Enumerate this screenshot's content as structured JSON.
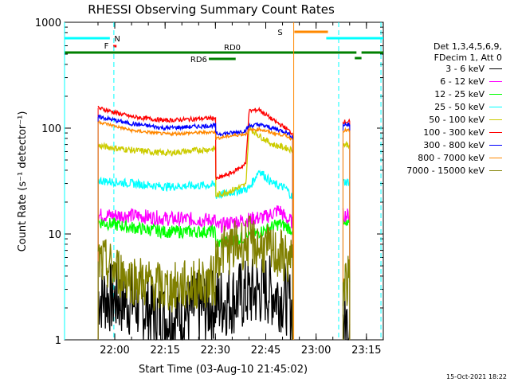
{
  "chart_data": {
    "type": "line",
    "title": "RHESSI Observing Summary Count Rates",
    "xlabel": "Start Time (03-Aug-10 21:45:02)",
    "ylabel": "Count Rate (s⁻¹ detector⁻¹)",
    "yscale": "log",
    "ylim": [
      1,
      1000
    ],
    "xlim_minutes": [
      0,
      95
    ],
    "x_ticks": [
      "22:00",
      "22:15",
      "22:30",
      "22:45",
      "23:00",
      "23:15"
    ],
    "y_ticks": [
      "1",
      "10",
      "100",
      "1000"
    ],
    "detector_info": [
      "Det 1,3,4,5,6,9,",
      "FDecim 1, Att 0"
    ],
    "series": [
      {
        "name": "3 - 6 keV",
        "color": "#000000",
        "segments": [
          [
            [
              10,
              2.6
            ],
            [
              20,
              2.3
            ],
            [
              30,
              1.6
            ],
            [
              45,
              2.2
            ],
            [
              60,
              3.0
            ],
            [
              66,
              2.5
            ],
            [
              68,
              1.9
            ]
          ],
          [
            [
              83,
              1.4
            ],
            [
              85,
              1.4
            ]
          ]
        ]
      },
      {
        "name": "6 - 12 keV",
        "color": "#ff00ff",
        "segments": [
          [
            [
              10,
              15
            ],
            [
              20,
              15
            ],
            [
              30,
              14
            ],
            [
              45,
              13.5
            ],
            [
              45.1,
              11.5
            ],
            [
              50,
              13
            ],
            [
              60,
              14.5
            ],
            [
              64,
              17
            ],
            [
              66,
              14
            ],
            [
              68,
              13
            ]
          ],
          [
            [
              83,
              15
            ],
            [
              85,
              15
            ]
          ]
        ]
      },
      {
        "name": "12 - 25 keV",
        "color": "#00ff00",
        "segments": [
          [
            [
              10,
              13
            ],
            [
              20,
              11.5
            ],
            [
              30,
              10.5
            ],
            [
              45,
              10.5
            ],
            [
              45.1,
              8
            ],
            [
              55,
              9.5
            ],
            [
              60,
              11
            ],
            [
              64,
              12.5
            ],
            [
              68,
              11
            ]
          ],
          [
            [
              83,
              12
            ],
            [
              85,
              12
            ]
          ]
        ]
      },
      {
        "name": "25 - 50 keV",
        "color": "#00ffff",
        "segments": [
          [
            [
              10,
              32
            ],
            [
              20,
              30
            ],
            [
              30,
              28
            ],
            [
              45,
              29
            ],
            [
              45.1,
              23
            ],
            [
              55,
              27
            ],
            [
              58,
              40
            ],
            [
              62,
              30
            ],
            [
              66,
              27
            ],
            [
              68,
              22
            ]
          ],
          [
            [
              83,
              31
            ],
            [
              85,
              31
            ]
          ]
        ]
      },
      {
        "name": "50 - 100 keV",
        "color": "#cccc00",
        "segments": [
          [
            [
              10,
              68
            ],
            [
              20,
              62
            ],
            [
              30,
              58
            ],
            [
              45,
              64
            ],
            [
              45.1,
              23
            ],
            [
              50,
              26
            ],
            [
              54,
              29
            ],
            [
              55,
              100
            ],
            [
              58,
              85
            ],
            [
              62,
              70
            ],
            [
              66,
              65
            ],
            [
              68,
              62
            ]
          ],
          [
            [
              83,
              70
            ],
            [
              85,
              70
            ]
          ]
        ]
      },
      {
        "name": "100 - 300 keV",
        "color": "#ff0000",
        "segments": [
          [
            [
              10,
              155
            ],
            [
              20,
              128
            ],
            [
              30,
              118
            ],
            [
              45,
              125
            ],
            [
              45.1,
              33
            ],
            [
              50,
              38
            ],
            [
              54,
              46
            ],
            [
              55,
              145
            ],
            [
              58,
              150
            ],
            [
              62,
              120
            ],
            [
              66,
              100
            ],
            [
              68,
              88
            ]
          ],
          [
            [
              83,
              115
            ],
            [
              85,
              115
            ]
          ]
        ]
      },
      {
        "name": "300 - 800 keV",
        "color": "#0000ff",
        "segments": [
          [
            [
              10,
              128
            ],
            [
              20,
              110
            ],
            [
              30,
              100
            ],
            [
              45,
              106
            ],
            [
              45.1,
              88
            ],
            [
              50,
              90
            ],
            [
              54,
              95
            ],
            [
              55,
              105
            ],
            [
              58,
              108
            ],
            [
              62,
              100
            ],
            [
              66,
              92
            ],
            [
              68,
              82
            ]
          ],
          [
            [
              83,
              108
            ],
            [
              85,
              108
            ]
          ]
        ]
      },
      {
        "name": "800 - 7000 keV",
        "color": "#ff8800",
        "segments": [
          [
            [
              10,
              115
            ],
            [
              20,
              95
            ],
            [
              30,
              88
            ],
            [
              45,
              92
            ],
            [
              45.1,
              80
            ],
            [
              50,
              85
            ],
            [
              54,
              88
            ],
            [
              55,
              95
            ],
            [
              58,
              98
            ],
            [
              62,
              90
            ],
            [
              66,
              85
            ],
            [
              68,
              78
            ]
          ],
          [
            [
              83,
              95
            ],
            [
              85,
              95
            ]
          ]
        ]
      },
      {
        "name": "7000 - 15000 keV",
        "color": "#808000",
        "segments": [
          [
            [
              10,
              5.5
            ],
            [
              20,
              3.8
            ],
            [
              30,
              3.0
            ],
            [
              45,
              3.6
            ],
            [
              45.1,
              6.5
            ],
            [
              55,
              8.5
            ],
            [
              60,
              7
            ],
            [
              66,
              6
            ],
            [
              68,
              5
            ]
          ],
          [
            [
              83,
              3.5
            ],
            [
              85,
              3.5
            ]
          ]
        ]
      }
    ],
    "flags": [
      {
        "label": "N",
        "color": "#00ffff",
        "x0": 0,
        "x1": 18,
        "level": 1
      },
      {
        "label": "F",
        "color": "#ff0000",
        "x0": 16.5,
        "x1": 18.5,
        "level": 2
      },
      {
        "label": "S",
        "color": "#ff8800",
        "x0": 69,
        "x1": 81,
        "level": 0
      },
      {
        "label": "RD0",
        "color": "#008000",
        "x0": 0,
        "x1": 95,
        "level": 3
      },
      {
        "label": "RD6",
        "color": "#008000",
        "x0": 45,
        "x1": 53,
        "level": 4
      }
    ],
    "night_segments": [
      [
        0,
        95
      ]
    ],
    "vlines": [
      {
        "x": 0,
        "color": "#00ffff",
        "style": "solid"
      },
      {
        "x": 14.7,
        "color": "#00ffff",
        "style": "dashed"
      },
      {
        "x": 68.3,
        "color": "#ff8800",
        "style": "solid"
      },
      {
        "x": 81.7,
        "color": "#00ffff",
        "style": "dashed"
      },
      {
        "x": 94.3,
        "color": "#00ffff",
        "style": "dashed"
      }
    ],
    "grid": false,
    "legend_position": "right"
  },
  "footer": {
    "timestamp": "15-Oct-2021 18:22"
  }
}
